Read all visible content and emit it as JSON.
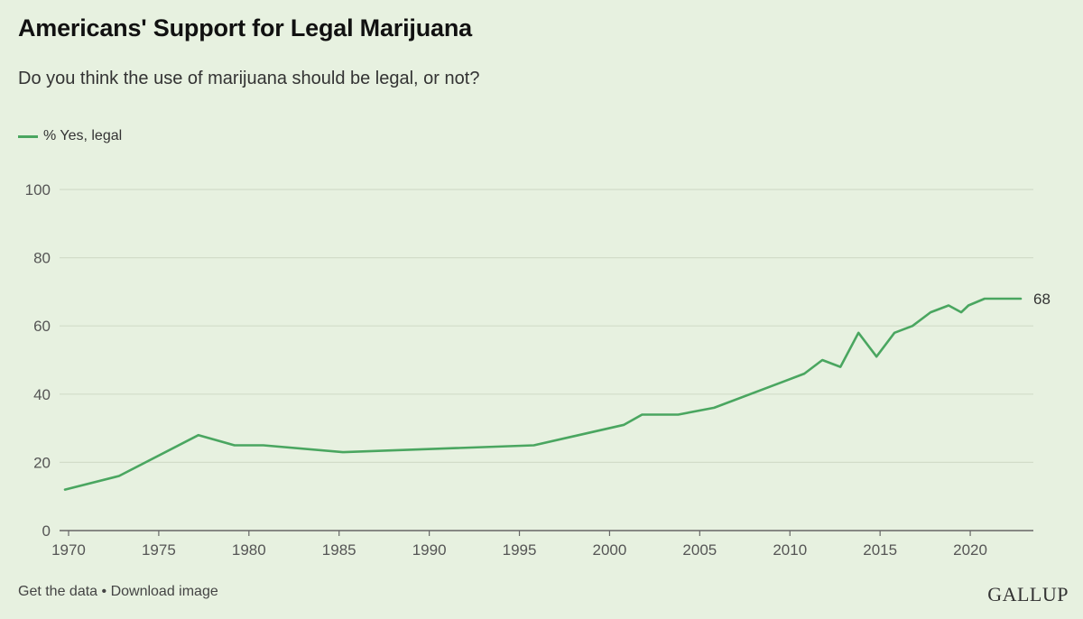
{
  "header": {
    "title": "Americans' Support for Legal Marijuana",
    "subtitle": "Do you think the use of marijuana should be legal, or not?"
  },
  "footer": {
    "get_data_label": "Get the data",
    "separator": " • ",
    "download_label": "Download image",
    "brand": "GALLUP"
  },
  "colors": {
    "background": "#e7f1e0",
    "line": "#4aa660",
    "grid": "#d2dcc9",
    "axis": "#666666"
  },
  "chart_data": {
    "type": "line",
    "title": "Americans' Support for Legal Marijuana",
    "subtitle": "Do you think the use of marijuana should be legal, or not?",
    "xlabel": "",
    "ylabel": "",
    "xlim": [
      1969.5,
      2023.5
    ],
    "ylim": [
      0,
      100
    ],
    "x_ticks": [
      1970,
      1975,
      1980,
      1985,
      1990,
      1995,
      2000,
      2005,
      2010,
      2015,
      2020
    ],
    "y_ticks": [
      0,
      20,
      40,
      60,
      80,
      100
    ],
    "grid": true,
    "legend_position": "top-left",
    "series": [
      {
        "name": "% Yes, legal",
        "color": "#4aa660",
        "end_label": "68",
        "points": [
          [
            1969.8,
            12
          ],
          [
            1972.8,
            16
          ],
          [
            1977.2,
            28
          ],
          [
            1979.2,
            25
          ],
          [
            1980.8,
            25
          ],
          [
            1985.2,
            23
          ],
          [
            1995.8,
            25
          ],
          [
            2000.8,
            31
          ],
          [
            2001.8,
            34
          ],
          [
            2003.8,
            34
          ],
          [
            2005.8,
            36
          ],
          [
            2009.8,
            44
          ],
          [
            2010.8,
            46
          ],
          [
            2011.8,
            50
          ],
          [
            2012.8,
            48
          ],
          [
            2013.8,
            58
          ],
          [
            2014.8,
            51
          ],
          [
            2015.8,
            58
          ],
          [
            2016.8,
            60
          ],
          [
            2017.8,
            64
          ],
          [
            2018.8,
            66
          ],
          [
            2019.5,
            64
          ],
          [
            2019.9,
            66
          ],
          [
            2020.8,
            68
          ],
          [
            2021.8,
            68
          ],
          [
            2022.8,
            68
          ]
        ]
      }
    ]
  }
}
